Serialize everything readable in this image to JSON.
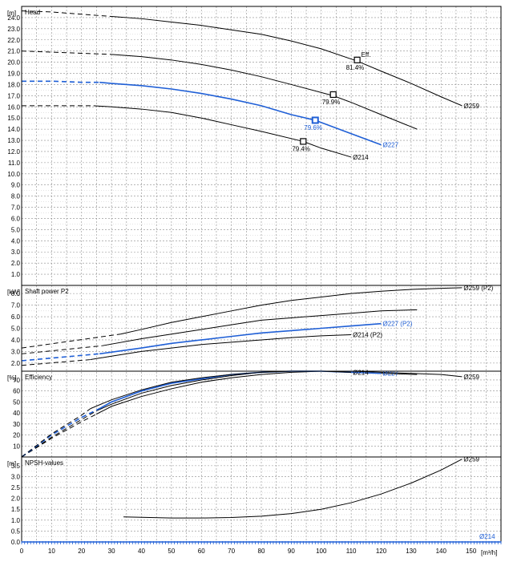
{
  "colors": {
    "highlight": "#1f5fd6",
    "default": "#000000",
    "grid": "#8c8c8c"
  },
  "chart_data": [
    {
      "type": "line",
      "title": "Head",
      "ylabel": "[m]",
      "ylim": [
        0,
        25
      ],
      "ytick_labels": [
        "1.0",
        "2.0",
        "3.0",
        "4.0",
        "5.0",
        "6.0",
        "7.0",
        "8.0",
        "9.0",
        "10.0",
        "11.0",
        "12.0",
        "13.0",
        "14.0",
        "15.0",
        "16.0",
        "17.0",
        "18.0",
        "19.0",
        "20.0",
        "21.0",
        "22.0",
        "23.0",
        "24.0"
      ],
      "series": [
        {
          "name": "Ø259",
          "highlight": false,
          "dashed_until": 30,
          "x": [
            0,
            10,
            20,
            30,
            40,
            50,
            60,
            70,
            80,
            90,
            100,
            112,
            120,
            130,
            140,
            147
          ],
          "y": [
            24.6,
            24.5,
            24.3,
            24.1,
            23.9,
            23.6,
            23.3,
            22.9,
            22.5,
            21.9,
            21.2,
            20.1,
            19.2,
            18.1,
            16.9,
            16.1
          ]
        },
        {
          "name": "",
          "highlight": false,
          "dashed_until": 30,
          "x": [
            0,
            10,
            20,
            30,
            40,
            50,
            60,
            70,
            80,
            90,
            104,
            110,
            120,
            132
          ],
          "y": [
            21.0,
            20.9,
            20.8,
            20.7,
            20.5,
            20.2,
            19.8,
            19.3,
            18.7,
            18.0,
            17.0,
            16.4,
            15.3,
            14.0
          ]
        },
        {
          "name": "Ø227",
          "highlight": true,
          "dashed_until": 26,
          "x": [
            0,
            10,
            20,
            26,
            30,
            40,
            50,
            60,
            70,
            80,
            90,
            98,
            110,
            120
          ],
          "y": [
            18.3,
            18.3,
            18.2,
            18.2,
            18.1,
            17.9,
            17.6,
            17.2,
            16.7,
            16.1,
            15.3,
            14.8,
            13.6,
            12.6
          ]
        },
        {
          "name": "Ø214",
          "highlight": false,
          "dashed_until": 24,
          "x": [
            0,
            10,
            20,
            24,
            30,
            40,
            50,
            60,
            70,
            80,
            94,
            100,
            110
          ],
          "y": [
            16.1,
            16.1,
            16.1,
            16.1,
            16.0,
            15.8,
            15.5,
            15.0,
            14.4,
            13.8,
            12.9,
            12.3,
            11.5
          ]
        }
      ],
      "markers": [
        {
          "x": 112,
          "y": 20.2,
          "label": "81.4%",
          "highlight": false
        },
        {
          "x": 104,
          "y": 17.1,
          "label": "79.9%",
          "highlight": false
        },
        {
          "x": 98,
          "y": 14.8,
          "label": "79.6%",
          "highlight": true
        },
        {
          "x": 94,
          "y": 12.9,
          "label": "79.4%",
          "highlight": false
        }
      ],
      "eff_label": "Eff."
    },
    {
      "type": "line",
      "title": "Shaft power P2",
      "ylabel": "[kW]",
      "ylim": [
        1.3,
        8.7
      ],
      "ytick_labels": [
        "2.0",
        "3.0",
        "4.0",
        "5.0",
        "6.0",
        "7.0",
        "8.0"
      ],
      "series": [
        {
          "name": "Ø259 (P2)",
          "highlight": false,
          "dashed_until": 33,
          "x": [
            0,
            33,
            40,
            50,
            60,
            70,
            80,
            90,
            100,
            110,
            120,
            130,
            140,
            147
          ],
          "y": [
            3.3,
            4.5,
            4.9,
            5.5,
            6.0,
            6.5,
            7.0,
            7.4,
            7.7,
            8.0,
            8.2,
            8.35,
            8.45,
            8.5
          ]
        },
        {
          "name": "",
          "highlight": false,
          "dashed_until": 27,
          "x": [
            0,
            27,
            40,
            50,
            60,
            70,
            80,
            90,
            100,
            110,
            120,
            132
          ],
          "y": [
            2.8,
            3.5,
            4.1,
            4.5,
            4.9,
            5.3,
            5.7,
            5.9,
            6.1,
            6.3,
            6.5,
            6.6
          ]
        },
        {
          "name": "Ø227 (P2)",
          "highlight": true,
          "dashed_until": 26,
          "x": [
            0,
            26,
            40,
            50,
            60,
            70,
            80,
            90,
            100,
            110,
            120
          ],
          "y": [
            2.2,
            2.8,
            3.3,
            3.7,
            4.0,
            4.3,
            4.6,
            4.8,
            5.0,
            5.2,
            5.4
          ]
        },
        {
          "name": "Ø214 (P2)",
          "highlight": false,
          "dashed_until": 23,
          "x": [
            0,
            23,
            30,
            40,
            50,
            60,
            70,
            80,
            90,
            100,
            110
          ],
          "y": [
            1.8,
            2.3,
            2.6,
            3.0,
            3.3,
            3.6,
            3.8,
            4.0,
            4.2,
            4.35,
            4.45
          ]
        }
      ]
    },
    {
      "type": "line",
      "title": "Efficiency",
      "ylabel": "[%]",
      "ylim": [
        0,
        78
      ],
      "ytick_labels": [
        "10",
        "20",
        "30",
        "40",
        "50",
        "60",
        "70"
      ],
      "series": [
        {
          "name": "Ø259",
          "highlight": false,
          "dashed_until": 25,
          "x": [
            0,
            10,
            20,
            25,
            30,
            40,
            50,
            60,
            70,
            80,
            90,
            100,
            110,
            120,
            130,
            140,
            147
          ],
          "y": [
            0,
            17,
            32,
            39,
            46,
            55,
            62,
            68,
            72,
            75,
            77,
            78,
            78,
            77,
            76,
            75,
            73
          ]
        },
        {
          "name": "",
          "highlight": false,
          "dashed_until": 25,
          "x": [
            0,
            10,
            20,
            25,
            30,
            40,
            50,
            60,
            70,
            80,
            90,
            100,
            110,
            120,
            132
          ],
          "y": [
            0,
            18,
            34,
            42,
            48,
            58,
            65,
            70,
            74,
            77,
            78,
            78,
            77,
            76,
            75
          ]
        },
        {
          "name": "Ø227",
          "highlight": true,
          "dashed_until": 26,
          "x": [
            0,
            10,
            20,
            26,
            30,
            40,
            50,
            60,
            70,
            80,
            90,
            100,
            110,
            120
          ],
          "y": [
            0,
            20,
            36,
            44,
            50,
            60,
            67,
            71,
            75,
            77,
            78,
            78,
            77,
            76
          ]
        },
        {
          "name": "Ø214",
          "highlight": false,
          "dashed_until": 23,
          "x": [
            0,
            10,
            20,
            23,
            30,
            40,
            50,
            60,
            70,
            80,
            90,
            100,
            110
          ],
          "y": [
            0,
            21,
            38,
            44,
            52,
            61,
            68,
            72,
            75,
            77,
            78,
            78,
            77
          ]
        }
      ]
    },
    {
      "type": "line",
      "title": "NPSH-values",
      "ylabel": "[m]",
      "ylim": [
        0,
        3.9
      ],
      "ytick_labels": [
        "0.0",
        "0.5",
        "1.0",
        "1.5",
        "2.0",
        "2.5",
        "3.0",
        "3.5"
      ],
      "series": [
        {
          "name": "Ø259",
          "highlight": false,
          "dashed_until": 0,
          "x": [
            34,
            40,
            50,
            60,
            70,
            80,
            90,
            100,
            110,
            120,
            130,
            140,
            147
          ],
          "y": [
            1.15,
            1.13,
            1.1,
            1.1,
            1.12,
            1.18,
            1.3,
            1.5,
            1.8,
            2.2,
            2.7,
            3.3,
            3.8
          ]
        }
      ]
    }
  ],
  "x_axis": {
    "xlim": [
      0,
      160
    ],
    "tick_labels": [
      "0",
      "10",
      "20",
      "30",
      "40",
      "50",
      "60",
      "70",
      "80",
      "90",
      "100",
      "110",
      "120",
      "130",
      "140",
      "150"
    ],
    "unit": "[m³/h]"
  },
  "footer_label": "Ø214"
}
